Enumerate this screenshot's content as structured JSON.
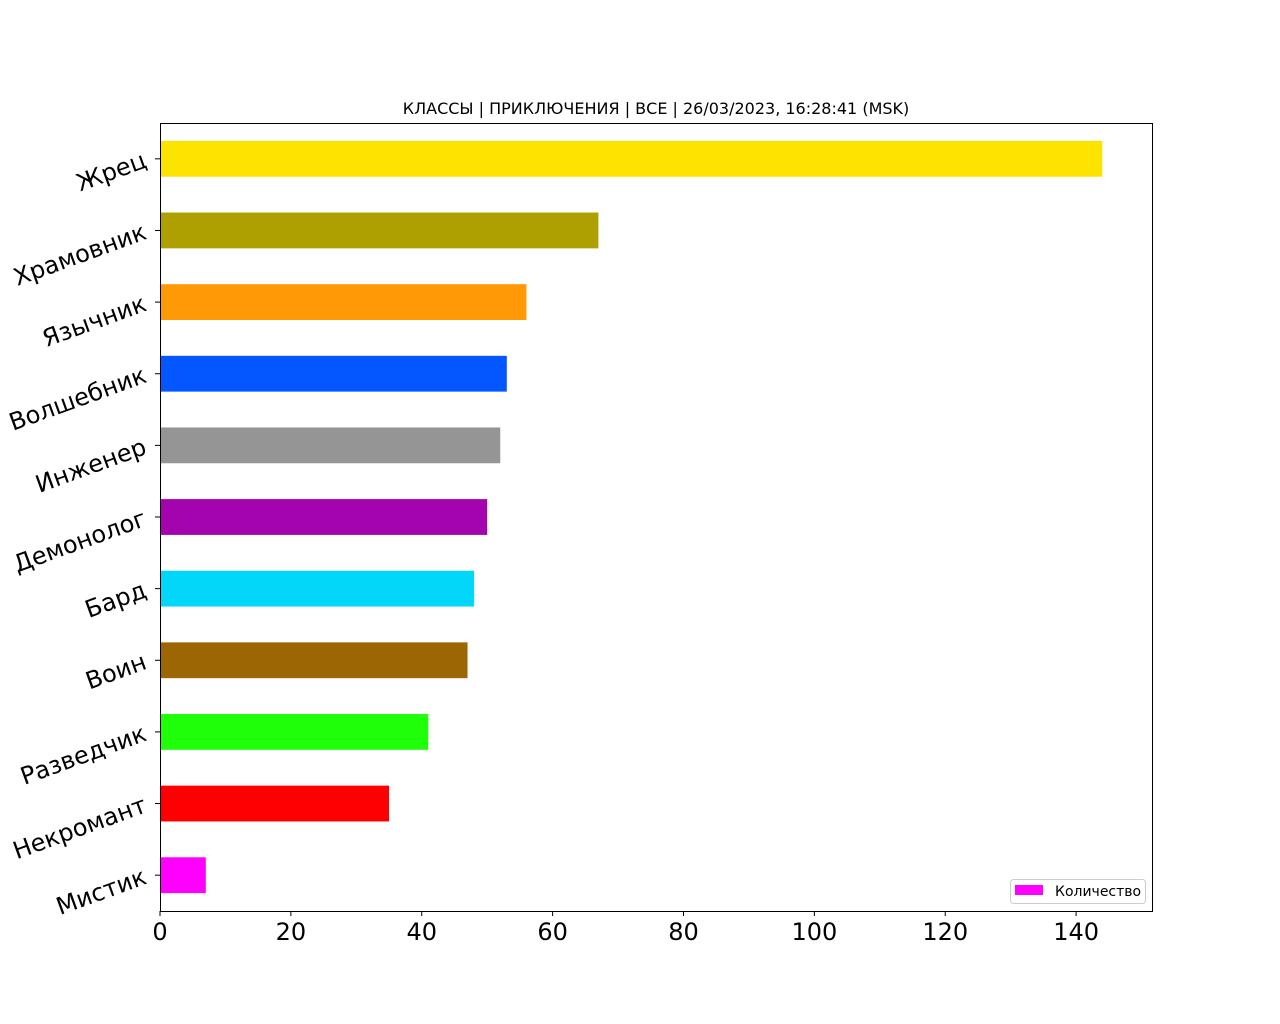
{
  "chart_data": {
    "type": "bar",
    "orientation": "horizontal",
    "title": "КЛАССЫ | ПРИКЛЮЧЕНИЯ | ВСЕ | 26/03/2023, 16:28:41 (MSK)",
    "xlabel": "",
    "ylabel": "",
    "xlim": [
      0,
      151.6
    ],
    "xticks": [
      0,
      20,
      40,
      60,
      80,
      100,
      120,
      140
    ],
    "grid": false,
    "legend": {
      "position": "bottom-right",
      "entries": [
        {
          "label": "Количество",
          "color": "#ff00ff"
        }
      ]
    },
    "categories": [
      "Жрец",
      "Храмовник",
      "Язычник",
      "Волшебник",
      "Инженер",
      "Демонолог",
      "Бард",
      "Воин",
      "Разведчик",
      "Некромант",
      "Мистик"
    ],
    "series": [
      {
        "name": "Количество",
        "values": [
          144,
          67,
          56,
          53,
          52,
          50,
          48,
          47,
          41,
          35,
          7
        ],
        "colors": [
          "#fce300",
          "#aea000",
          "#ff9a06",
          "#0457ff",
          "#959595",
          "#a304ad",
          "#02d7fa",
          "#9c6603",
          "#1fff0a",
          "#fe0002",
          "#ff00ff"
        ]
      }
    ]
  }
}
